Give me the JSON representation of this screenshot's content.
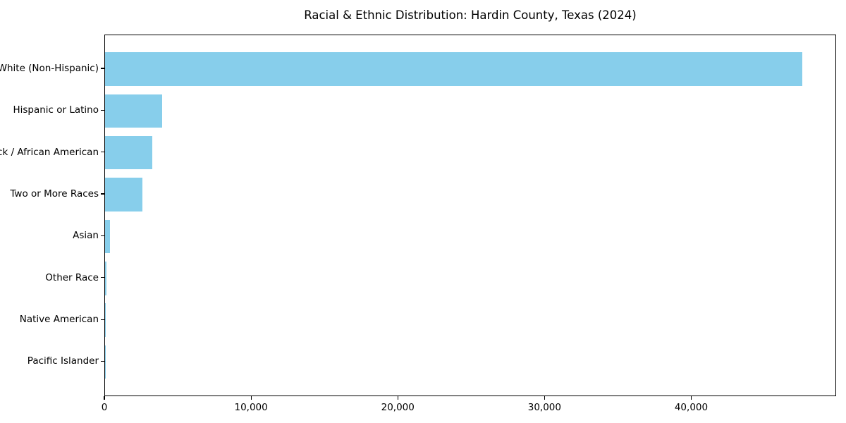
{
  "figure": {
    "title": "Racial & Ethnic Distribution: Hardin County, Texas (2024)"
  },
  "chart_data": {
    "type": "bar",
    "orientation": "horizontal",
    "title": "Racial & Ethnic Distribution: Hardin County, Texas (2024)",
    "categories": [
      "White (Non-Hispanic)",
      "Hispanic or Latino",
      "Black / African American",
      "Two or More Races",
      "Asian",
      "Other Race",
      "Native American",
      "Pacific Islander"
    ],
    "values": [
      47500,
      3900,
      3200,
      2550,
      320,
      100,
      40,
      15
    ],
    "xlabel": "",
    "ylabel": "",
    "xlim": [
      0,
      49875
    ],
    "x_ticks": [
      0,
      10000,
      20000,
      30000,
      40000
    ],
    "x_tick_labels": [
      "0",
      "10,000",
      "20,000",
      "30,000",
      "40,000"
    ],
    "grid": false,
    "legend": null,
    "bar_color": "#87CEEB",
    "spine_color": "#000000",
    "background_color": "#ffffff",
    "text_color": "#000000"
  }
}
